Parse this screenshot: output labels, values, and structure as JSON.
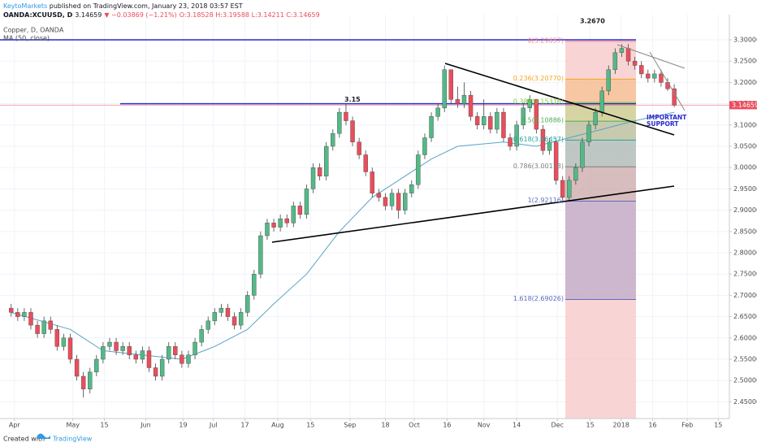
{
  "chart_data": {
    "type": "candlestick",
    "header": {
      "publisher": "KeytoMarkets",
      "published": "published on TradingView.com, January 23, 2018 03:57 EST",
      "symbol": "OANDA:XCUUSD, D",
      "price": "3.14659",
      "change": "▼ −0.03869 (−1.21%)",
      "ohlc": "O:3.18528 H:3.19588 L:3.14211 C:3.14659"
    },
    "title": "Copper, D, OANDA",
    "up_color": "#53b987",
    "down_color": "#eb4d5c",
    "grid": true,
    "candles": {
      "open": [
        2.67,
        2.66,
        2.65,
        2.66,
        2.63,
        2.61,
        2.64,
        2.62,
        2.58,
        2.6,
        2.55,
        2.51,
        2.48,
        2.52,
        2.55,
        2.58,
        2.59,
        2.57,
        2.58,
        2.56,
        2.55,
        2.57,
        2.53,
        2.51,
        2.55,
        2.58,
        2.56,
        2.54,
        2.56,
        2.59,
        2.62,
        2.64,
        2.66,
        2.67,
        2.65,
        2.63,
        2.66,
        2.7,
        2.75,
        2.84,
        2.87,
        2.86,
        2.88,
        2.87,
        2.91,
        2.89,
        2.95,
        3.0,
        2.98,
        3.05,
        3.08,
        3.13,
        3.11,
        3.06,
        3.03,
        2.99,
        2.94,
        2.93,
        2.91,
        2.94,
        2.9,
        2.94,
        2.96,
        3.03,
        3.07,
        3.12,
        3.14,
        3.23,
        3.16,
        3.15,
        3.17,
        3.12,
        3.1,
        3.12,
        3.09,
        3.13,
        3.07,
        3.05,
        3.1,
        3.14,
        3.16,
        3.09,
        3.04,
        3.06,
        2.97,
        2.93,
        2.97,
        3.0,
        3.06,
        3.1,
        3.13,
        3.18,
        3.23,
        3.27,
        3.28,
        3.25,
        3.24,
        3.22,
        3.21,
        3.22,
        3.2,
        3.18528
      ],
      "high": [
        2.68,
        2.67,
        2.67,
        2.67,
        2.64,
        2.65,
        2.65,
        2.63,
        2.61,
        2.61,
        2.56,
        2.52,
        2.53,
        2.56,
        2.59,
        2.6,
        2.6,
        2.59,
        2.59,
        2.57,
        2.58,
        2.58,
        2.54,
        2.56,
        2.59,
        2.59,
        2.57,
        2.57,
        2.6,
        2.63,
        2.65,
        2.67,
        2.68,
        2.68,
        2.66,
        2.67,
        2.71,
        2.76,
        2.85,
        2.88,
        2.88,
        2.89,
        2.89,
        2.92,
        2.92,
        2.96,
        3.01,
        3.01,
        3.06,
        3.09,
        3.14,
        3.15,
        3.12,
        3.07,
        3.04,
        3.0,
        2.95,
        2.94,
        2.95,
        2.95,
        2.95,
        2.97,
        3.04,
        3.08,
        3.13,
        3.15,
        3.24,
        3.23,
        3.19,
        3.2,
        3.18,
        3.13,
        3.16,
        3.13,
        3.14,
        3.14,
        3.08,
        3.11,
        3.15,
        3.17,
        3.16,
        3.1,
        3.07,
        3.07,
        2.98,
        2.98,
        3.01,
        3.07,
        3.11,
        3.14,
        3.19,
        3.24,
        3.28,
        3.29,
        3.29,
        3.26,
        3.25,
        3.23,
        3.23,
        3.23,
        3.21,
        3.19588
      ],
      "low": [
        2.65,
        2.64,
        2.64,
        2.62,
        2.6,
        2.6,
        2.61,
        2.57,
        2.57,
        2.54,
        2.5,
        2.46,
        2.47,
        2.51,
        2.54,
        2.57,
        2.56,
        2.56,
        2.55,
        2.54,
        2.54,
        2.52,
        2.5,
        2.5,
        2.54,
        2.55,
        2.53,
        2.53,
        2.55,
        2.58,
        2.61,
        2.63,
        2.65,
        2.64,
        2.62,
        2.62,
        2.65,
        2.69,
        2.74,
        2.83,
        2.85,
        2.85,
        2.86,
        2.86,
        2.88,
        2.88,
        2.94,
        2.97,
        2.97,
        3.04,
        3.07,
        3.1,
        3.05,
        3.02,
        2.98,
        2.93,
        2.92,
        2.9,
        2.9,
        2.88,
        2.89,
        2.93,
        2.95,
        3.02,
        3.06,
        3.11,
        3.13,
        3.15,
        3.14,
        3.14,
        3.11,
        3.09,
        3.09,
        3.08,
        3.08,
        3.06,
        3.04,
        3.04,
        3.09,
        3.13,
        3.08,
        3.03,
        3.03,
        2.96,
        2.92,
        2.92,
        2.96,
        2.99,
        3.05,
        3.09,
        3.12,
        3.17,
        3.22,
        3.26,
        3.24,
        3.23,
        3.21,
        3.2,
        3.2,
        3.19,
        3.18,
        3.14211
      ],
      "close": [
        2.66,
        2.65,
        2.66,
        2.63,
        2.61,
        2.64,
        2.62,
        2.58,
        2.6,
        2.55,
        2.51,
        2.48,
        2.52,
        2.55,
        2.58,
        2.59,
        2.57,
        2.58,
        2.56,
        2.55,
        2.57,
        2.53,
        2.51,
        2.55,
        2.58,
        2.56,
        2.54,
        2.56,
        2.59,
        2.62,
        2.64,
        2.66,
        2.67,
        2.65,
        2.63,
        2.66,
        2.7,
        2.75,
        2.84,
        2.87,
        2.86,
        2.88,
        2.87,
        2.91,
        2.89,
        2.95,
        3.0,
        2.98,
        3.05,
        3.08,
        3.13,
        3.11,
        3.06,
        3.03,
        2.99,
        2.94,
        2.93,
        2.91,
        2.94,
        2.9,
        2.94,
        2.96,
        3.03,
        3.07,
        3.12,
        3.14,
        3.23,
        3.16,
        3.15,
        3.17,
        3.12,
        3.1,
        3.12,
        3.09,
        3.13,
        3.07,
        3.05,
        3.1,
        3.14,
        3.16,
        3.09,
        3.04,
        3.06,
        2.97,
        2.93,
        2.97,
        3.0,
        3.06,
        3.1,
        3.13,
        3.18,
        3.23,
        3.27,
        3.28,
        3.25,
        3.24,
        3.22,
        3.21,
        3.22,
        3.2,
        3.185,
        3.14659
      ]
    },
    "ma": {
      "name": "MA (50, close)",
      "color": "#5aa3c6",
      "x": [
        0,
        9,
        14,
        20,
        26,
        31,
        36,
        40,
        45,
        50,
        55,
        60,
        64,
        68,
        75,
        80,
        85,
        90,
        95,
        101
      ],
      "values": [
        2.66,
        2.62,
        2.57,
        2.56,
        2.55,
        2.58,
        2.62,
        2.68,
        2.75,
        2.85,
        2.93,
        2.98,
        3.02,
        3.05,
        3.06,
        3.05,
        3.07,
        3.09,
        3.11,
        3.13
      ]
    },
    "last_price": 3.14659,
    "hline": 3.15,
    "fib": {
      "levels": [
        {
          "value": 3.29657,
          "label": "0(3.29657)"
        },
        {
          "value": 3.2077,
          "label": "0.236(3.20770)"
        },
        {
          "value": 3.15316,
          "label": "0.382(3.15316)"
        },
        {
          "value": 3.10886,
          "label": "0.5(3.10886)"
        },
        {
          "value": 3.06457,
          "label": "0.618(3.06457)"
        },
        {
          "value": 3.00178,
          "label": "0.786(3.00178)"
        },
        {
          "value": 2.92116,
          "label": "1(2.92116)"
        },
        {
          "value": 2.69026,
          "label": "1.618(2.69026)"
        }
      ],
      "colors": [
        "#f08080",
        "#f5a623",
        "#7ed321",
        "#4caf50",
        "#26a69a",
        "#808080",
        "#5c6bc0",
        "#5c6bc0"
      ]
    },
    "annotations": [
      "3.2670",
      "IMPORTANT",
      "SUPPORT"
    ],
    "xlim": [
      -1.7,
      109.4
    ],
    "xticks": [
      {
        "value": 0.5,
        "label": "Apr"
      },
      {
        "value": 9.4,
        "label": "May"
      },
      {
        "value": 14.2,
        "label": "15"
      },
      {
        "value": 20.5,
        "label": "Jun"
      },
      {
        "value": 26.2,
        "label": "19"
      },
      {
        "value": 30.8,
        "label": "Jul"
      },
      {
        "value": 35.6,
        "label": "17"
      },
      {
        "value": 40.6,
        "label": "Aug"
      },
      {
        "value": 45.6,
        "label": "15"
      },
      {
        "value": 51.6,
        "label": "Sep"
      },
      {
        "value": 57,
        "label": "18"
      },
      {
        "value": 61.4,
        "label": "Oct"
      },
      {
        "value": 66.4,
        "label": "16"
      },
      {
        "value": 72,
        "label": "Nov"
      },
      {
        "value": 77,
        "label": "14"
      },
      {
        "value": 83.2,
        "label": "Dec"
      },
      {
        "value": 88.2,
        "label": "15"
      },
      {
        "value": 92.9,
        "label": "2018"
      },
      {
        "value": 97.7,
        "label": "16"
      },
      {
        "value": 103,
        "label": "Feb"
      },
      {
        "value": 107.7,
        "label": "15"
      }
    ],
    "ylim": [
      2.4107,
      3.3592
    ],
    "yticks": [
      {
        "value": 2.45,
        "label": "2.45000"
      },
      {
        "value": 2.5,
        "label": "2.50000"
      },
      {
        "value": 2.55,
        "label": "2.55000"
      },
      {
        "value": 2.6,
        "label": "2.60000"
      },
      {
        "value": 2.65,
        "label": "2.65000"
      },
      {
        "value": 2.7,
        "label": "2.70000"
      },
      {
        "value": 2.75,
        "label": "2.75000"
      },
      {
        "value": 2.8,
        "label": "2.80000"
      },
      {
        "value": 2.85,
        "label": "2.85000"
      },
      {
        "value": 2.9,
        "label": "2.90000"
      },
      {
        "value": 2.95,
        "label": "2.95000"
      },
      {
        "value": 3.0,
        "label": "3.00000"
      },
      {
        "value": 3.05,
        "label": "3.05000"
      },
      {
        "value": 3.1,
        "label": "3.10000"
      },
      {
        "value": 3.15,
        "label": "3.15000"
      },
      {
        "value": 3.2,
        "label": "3.20000"
      },
      {
        "value": 3.25,
        "label": "3.25000"
      },
      {
        "value": 3.3,
        "label": "3.30000"
      }
    ],
    "footer": {
      "created": "Created with",
      "brand": "TradingView"
    }
  }
}
